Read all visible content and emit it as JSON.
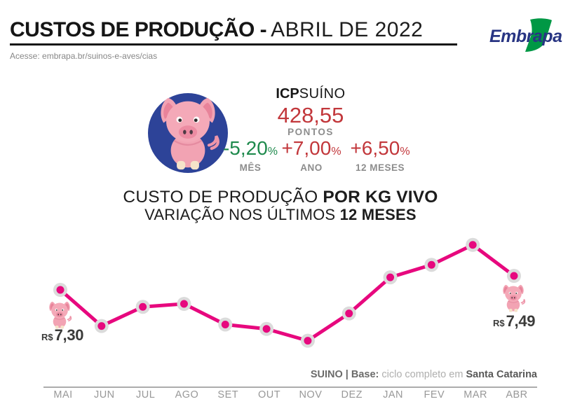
{
  "header": {
    "title_bold": "CUSTOS DE PRODUÇÃO -",
    "title_light": "ABRIL DE 2022",
    "subtitle": "Acesse: embrapa.br/suinos-e-aves/cias",
    "logo_text": "Embrapa"
  },
  "icp": {
    "label_bold": "ICP",
    "label_light": "SUÍNO",
    "value": "428,55",
    "unit": "PONTOS",
    "stats": [
      {
        "value": "-5,20",
        "pct": "%",
        "label": "MÊS",
        "color": "#1f8a4d"
      },
      {
        "value": "+7,00",
        "pct": "%",
        "label": "ANO",
        "color": "#c2373b"
      },
      {
        "value": "+6,50",
        "pct": "%",
        "label": "12 MESES",
        "color": "#c2373b"
      }
    ],
    "value_color": "#c2373b"
  },
  "chart_title": {
    "line1_regular": "CUSTO DE PRODUÇÃO ",
    "line1_bold": "POR KG VIVO",
    "line2_regular": "VARIAÇÃO NOS ÚLTIMOS ",
    "line2_bold": "12 MESES"
  },
  "chart_data": {
    "type": "line",
    "title": "CUSTO DE PRODUÇÃO POR KG VIVO",
    "subtitle": "VARIAÇÃO NOS ÚLTIMOS 12 MESES",
    "categories": [
      "MAI",
      "JUN",
      "JUL",
      "AGO",
      "SET",
      "OUT",
      "NOV",
      "DEZ",
      "JAN",
      "FEV",
      "MAR",
      "ABR"
    ],
    "values": [
      7.3,
      6.81,
      7.07,
      7.11,
      6.83,
      6.77,
      6.61,
      6.98,
      7.47,
      7.64,
      7.91,
      7.49
    ],
    "unit": "R$/kg",
    "ylim": [
      6.4,
      8.1
    ],
    "grid": false,
    "legend": false,
    "line_color": "#e7087e",
    "marker_ring_color": "#dbdbdb",
    "first_label": {
      "currency": "R$",
      "value": "7,30"
    },
    "last_label": {
      "currency": "R$",
      "value": "7,49"
    }
  },
  "footer": {
    "source_bold": "SUINO | Base:",
    "source_light": " ciclo completo em ",
    "source_place": "Santa Catarina"
  },
  "colors": {
    "accent_pink": "#e7087e",
    "negative_green": "#1f8a4d",
    "positive_red": "#c2373b",
    "badge_blue": "#2d4398",
    "embrapa_green": "#009845",
    "embrapa_blue": "#283583",
    "muted_gray": "#8d8d8d"
  }
}
